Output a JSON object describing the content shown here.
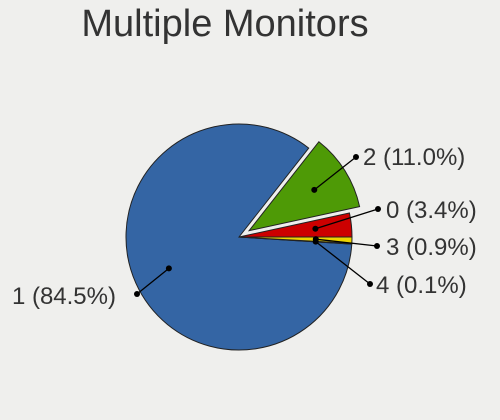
{
  "chart_data": {
    "type": "pie",
    "title": "Multiple Monitors",
    "background": "#efefed",
    "start_angle_deg": 0,
    "direction": "counterclockwise",
    "exploded_slice": "2",
    "slices": [
      {
        "name": "0",
        "label": "0 (3.4%)",
        "value": 3.4,
        "color": "#cc0000"
      },
      {
        "name": "2",
        "label": "2 (11.0%)",
        "value": 11.0,
        "color": "#4e9a06"
      },
      {
        "name": "1",
        "label": "1 (84.5%)",
        "value": 84.5,
        "color": "#3465a4"
      },
      {
        "name": "4",
        "label": "4 (0.1%)",
        "value": 0.1,
        "color": "#f3d90f"
      },
      {
        "name": "3",
        "label": "3 (0.9%)",
        "value": 0.9,
        "color": "#edd400"
      }
    ]
  }
}
